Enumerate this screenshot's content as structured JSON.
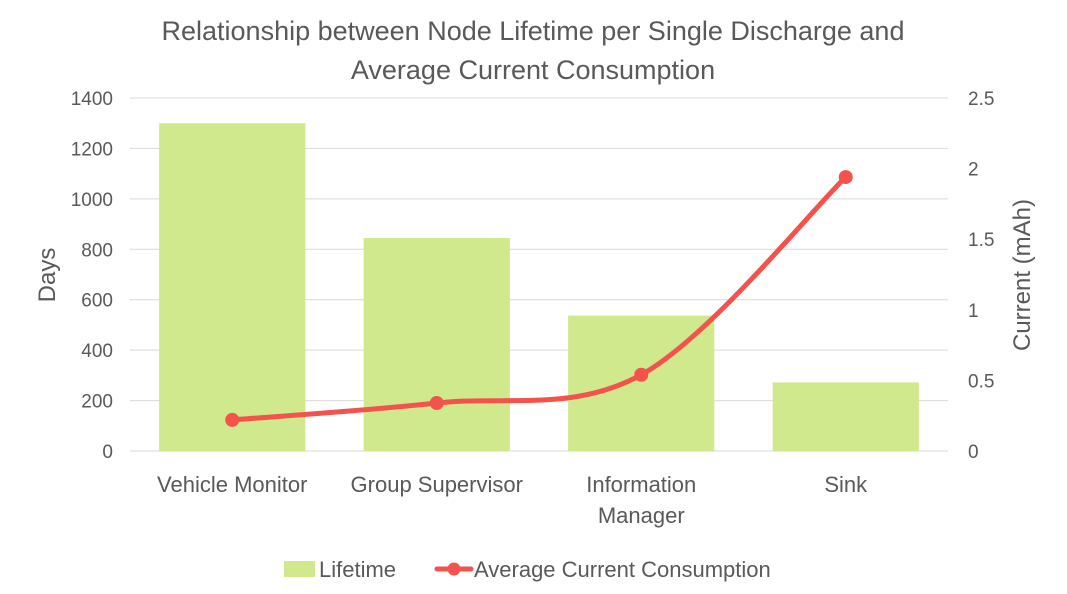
{
  "chart_data": {
    "type": "bar",
    "title_lines": [
      "Relationship between Node Lifetime per Single Discharge and",
      "Average Current Consumption"
    ],
    "categories": [
      [
        "Vehicle Monitor"
      ],
      [
        "Group Supervisor"
      ],
      [
        "Information",
        "Manager"
      ],
      [
        "Sink"
      ]
    ],
    "ylabel": "Days",
    "y2label": "Current (mAh)",
    "ylim": [
      0,
      1400
    ],
    "y2lim": [
      0,
      2.5
    ],
    "yticks": [
      0,
      200,
      400,
      600,
      800,
      1000,
      1200,
      1400
    ],
    "y2ticks": [
      0,
      0.5,
      1,
      1.5,
      2,
      2.5
    ],
    "y2tick_labels": [
      "0",
      "0.5",
      "1",
      "1.5",
      "2",
      "2.5"
    ],
    "grid": true,
    "legend_position": "bottom",
    "series": [
      {
        "name": "Lifetime",
        "type": "bar",
        "axis": "left",
        "color": "#cfe98c",
        "values": [
          1300,
          845,
          537,
          272
        ]
      },
      {
        "name": "Average Current Consumption",
        "type": "line",
        "axis": "right",
        "color": "#f4524d",
        "smooth": true,
        "values": [
          0.22,
          0.34,
          0.54,
          1.94
        ]
      }
    ]
  }
}
